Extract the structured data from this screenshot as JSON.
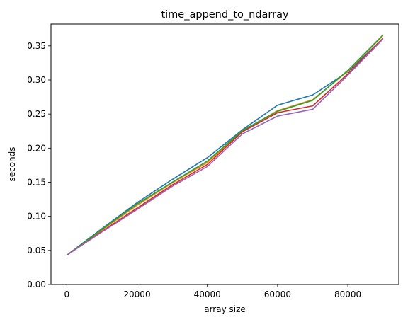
{
  "chart_data": {
    "type": "line",
    "title": "time_append_to_ndarray",
    "xlabel": "array size",
    "ylabel": "seconds",
    "xlim": [
      -4500,
      94500
    ],
    "ylim": [
      0.0,
      0.382
    ],
    "xticks": [
      0,
      20000,
      40000,
      60000,
      80000
    ],
    "yticks": [
      0.0,
      0.05,
      0.1,
      0.15,
      0.2,
      0.25,
      0.3,
      0.35
    ],
    "ytick_labels": [
      "0.00",
      "0.05",
      "0.10",
      "0.15",
      "0.20",
      "0.25",
      "0.30",
      "0.35"
    ],
    "grid": false,
    "legend": "none",
    "x": [
      0,
      10000,
      20000,
      30000,
      40000,
      50000,
      60000,
      70000,
      80000,
      90000
    ],
    "series": [
      {
        "color": "#1f77b4",
        "values": [
          0.043,
          0.082,
          0.12,
          0.154,
          0.186,
          0.227,
          0.263,
          0.278,
          0.312,
          0.361
        ]
      },
      {
        "color": "#ff7f0e",
        "values": [
          0.043,
          0.08,
          0.116,
          0.149,
          0.179,
          0.225,
          0.255,
          0.271,
          0.313,
          0.365
        ]
      },
      {
        "color": "#2ca02c",
        "values": [
          0.043,
          0.081,
          0.118,
          0.15,
          0.181,
          0.226,
          0.254,
          0.27,
          0.314,
          0.366
        ]
      },
      {
        "color": "#d62728",
        "values": [
          0.043,
          0.078,
          0.112,
          0.146,
          0.176,
          0.224,
          0.252,
          0.262,
          0.309,
          0.361
        ]
      },
      {
        "color": "#9467bd",
        "values": [
          0.043,
          0.077,
          0.11,
          0.144,
          0.173,
          0.221,
          0.247,
          0.257,
          0.307,
          0.36
        ]
      }
    ]
  }
}
